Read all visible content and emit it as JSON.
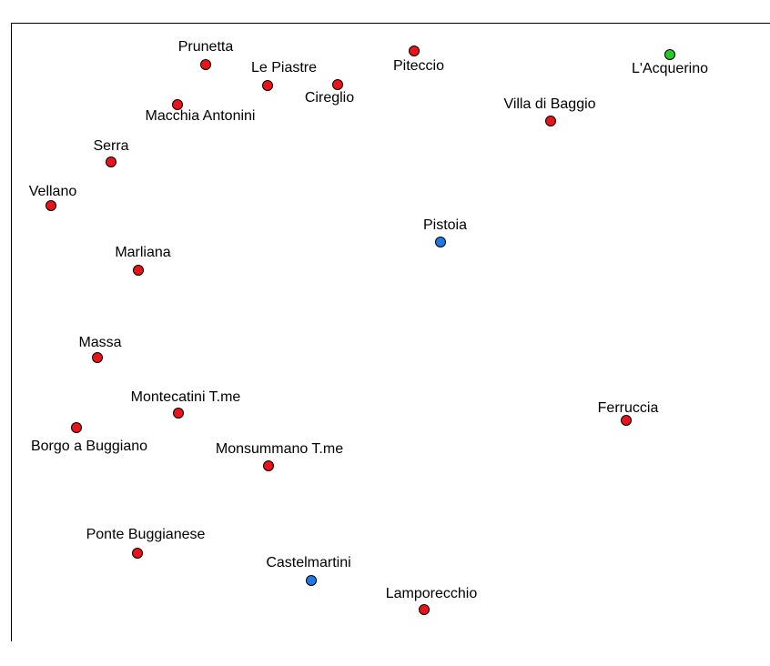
{
  "places": [
    {
      "name": "Prunetta",
      "color": "#e8141a"
    },
    {
      "name": "Le Piastre",
      "color": "#e8141a"
    },
    {
      "name": "Piteccio",
      "color": "#e8141a"
    },
    {
      "name": "Cireglio",
      "color": "#e8141a"
    },
    {
      "name": "L'Acquerino",
      "color": "#22cc22"
    },
    {
      "name": "Macchia Antonini",
      "color": "#e8141a"
    },
    {
      "name": "Villa di Baggio",
      "color": "#e8141a"
    },
    {
      "name": "Serra",
      "color": "#e8141a"
    },
    {
      "name": "Vellano",
      "color": "#e8141a"
    },
    {
      "name": "Pistoia",
      "color": "#1e78e6"
    },
    {
      "name": "Marliana",
      "color": "#e8141a"
    },
    {
      "name": "Massa",
      "color": "#e8141a"
    },
    {
      "name": "Montecatini T.me",
      "color": "#e8141a"
    },
    {
      "name": "Ferruccia",
      "color": "#e8141a"
    },
    {
      "name": "Borgo a Buggiano",
      "color": "#e8141a"
    },
    {
      "name": "Monsummano T.me",
      "color": "#e8141a"
    },
    {
      "name": "Ponte Buggianese",
      "color": "#e8141a"
    },
    {
      "name": "Castelmartini",
      "color": "#1e78e6"
    },
    {
      "name": "Lamporecchio",
      "color": "#e8141a"
    }
  ]
}
